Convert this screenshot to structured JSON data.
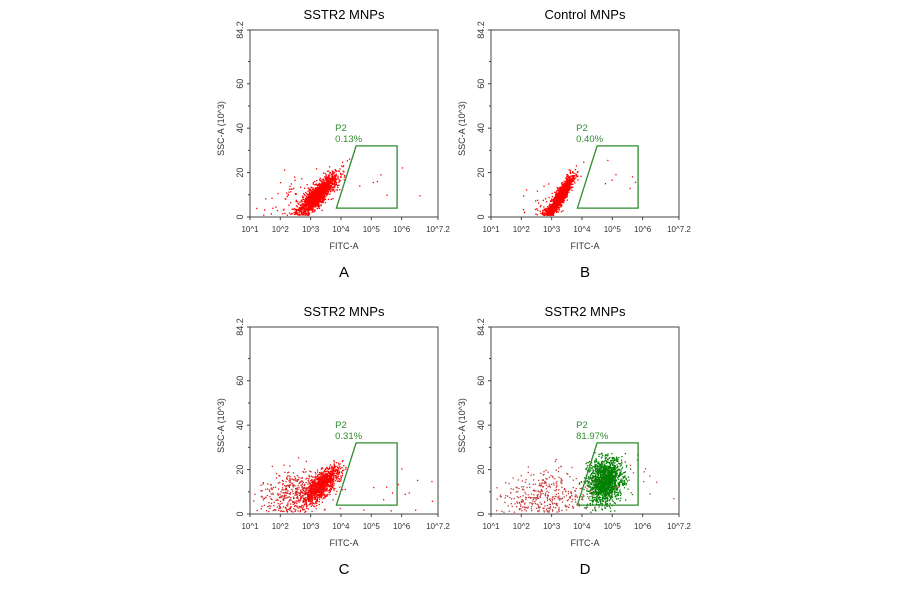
{
  "chart_data": [
    {
      "type": "scatter",
      "panel_label": "A",
      "title": "SSTR2 MNPs",
      "xlabel": "FITC-A",
      "ylabel": "SSC-A (10^3)",
      "x_scale": "log",
      "x_ticks": [
        "10^1",
        "10^2",
        "10^3",
        "10^4",
        "10^5",
        "10^6",
        "10^7.2"
      ],
      "xlim_log10": [
        1,
        7.2
      ],
      "y_ticks": [
        "0",
        "20",
        "40",
        "60",
        "84.2"
      ],
      "ylim": [
        0,
        84.2
      ],
      "gate": {
        "name": "P2",
        "percent": "0.13%",
        "color": "#2e8b2e",
        "vertices_log10fitc_ssc": [
          [
            3.85,
            4
          ],
          [
            4.5,
            32
          ],
          [
            5.85,
            32
          ],
          [
            5.85,
            4
          ]
        ]
      },
      "populations": [
        {
          "color": "#ff0000",
          "count": 1500,
          "mean_log10_fitc": 3.2,
          "sd_log10_fitc": 0.33,
          "mean_ssc": 10,
          "sd_ssc": 4.5,
          "slope": 12
        },
        {
          "color": "#ff0000",
          "count": 60,
          "mean_log10_fitc": 2.4,
          "sd_log10_fitc": 0.5,
          "mean_ssc": 8,
          "sd_ssc": 5,
          "slope": 2
        },
        {
          "color": "#ff0000",
          "count": 8,
          "mean_log10_fitc": 5.5,
          "sd_log10_fitc": 0.9,
          "mean_ssc": 14,
          "sd_ssc": 5,
          "slope": 0
        }
      ]
    },
    {
      "type": "scatter",
      "panel_label": "B",
      "title": "Control MNPs",
      "xlabel": "FITC-A",
      "ylabel": "SSC-A (10^3)",
      "x_scale": "log",
      "x_ticks": [
        "10^1",
        "10^2",
        "10^3",
        "10^4",
        "10^5",
        "10^6",
        "10^7.2"
      ],
      "xlim_log10": [
        1,
        7.2
      ],
      "y_ticks": [
        "0",
        "20",
        "40",
        "60",
        "84.2"
      ],
      "ylim": [
        0,
        84.2
      ],
      "gate": {
        "name": "P2",
        "percent": "0.40%",
        "color": "#2e8b2e",
        "vertices_log10fitc_ssc": [
          [
            3.85,
            4
          ],
          [
            4.5,
            32
          ],
          [
            5.85,
            32
          ],
          [
            5.85,
            4
          ]
        ]
      },
      "populations": [
        {
          "color": "#ff0000",
          "count": 1500,
          "mean_log10_fitc": 3.25,
          "sd_log10_fitc": 0.22,
          "mean_ssc": 9,
          "sd_ssc": 3.5,
          "slope": 20
        },
        {
          "color": "#ff0000",
          "count": 40,
          "mean_log10_fitc": 2.8,
          "sd_log10_fitc": 0.4,
          "mean_ssc": 6,
          "sd_ssc": 4,
          "slope": 2
        },
        {
          "color": "#ff0000",
          "count": 8,
          "mean_log10_fitc": 5.2,
          "sd_log10_fitc": 0.8,
          "mean_ssc": 14,
          "sd_ssc": 5,
          "slope": 0
        }
      ]
    },
    {
      "type": "scatter",
      "panel_label": "C",
      "title": "SSTR2 MNPs",
      "xlabel": "FITC-A",
      "ylabel": "SSC-A (10^3)",
      "x_scale": "log",
      "x_ticks": [
        "10^1",
        "10^2",
        "10^3",
        "10^4",
        "10^5",
        "10^6",
        "10^7.2"
      ],
      "xlim_log10": [
        1,
        7.2
      ],
      "y_ticks": [
        "0",
        "20",
        "40",
        "60",
        "84.2"
      ],
      "ylim": [
        0,
        84.2
      ],
      "gate": {
        "name": "P2",
        "percent": "0.31%",
        "color": "#2e8b2e",
        "vertices_log10fitc_ssc": [
          [
            3.85,
            4
          ],
          [
            4.5,
            32
          ],
          [
            5.85,
            32
          ],
          [
            5.85,
            4
          ]
        ]
      },
      "populations": [
        {
          "color": "#ff0000",
          "count": 1100,
          "mean_log10_fitc": 3.3,
          "sd_log10_fitc": 0.3,
          "mean_ssc": 13,
          "sd_ssc": 5,
          "slope": 10
        },
        {
          "color": "#dd2222",
          "count": 400,
          "mean_log10_fitc": 2.4,
          "sd_log10_fitc": 0.55,
          "mean_ssc": 10,
          "sd_ssc": 5.5,
          "slope": 3
        },
        {
          "color": "#ff0000",
          "count": 15,
          "mean_log10_fitc": 5.6,
          "sd_log10_fitc": 0.9,
          "mean_ssc": 12,
          "sd_ssc": 5,
          "slope": 0
        }
      ]
    },
    {
      "type": "scatter",
      "panel_label": "D",
      "title": "SSTR2 MNPs",
      "xlabel": "FITC-A",
      "ylabel": "SSC-A (10^3)",
      "x_scale": "log",
      "x_ticks": [
        "10^1",
        "10^2",
        "10^3",
        "10^4",
        "10^5",
        "10^6",
        "10^7.2"
      ],
      "xlim_log10": [
        1,
        7.2
      ],
      "y_ticks": [
        "0",
        "20",
        "40",
        "60",
        "84.2"
      ],
      "ylim": [
        0,
        84.2
      ],
      "gate": {
        "name": "P2",
        "percent": "81.97%",
        "color": "#2e8b2e",
        "vertices_log10fitc_ssc": [
          [
            3.85,
            4
          ],
          [
            4.5,
            32
          ],
          [
            5.85,
            32
          ],
          [
            5.85,
            4
          ]
        ]
      },
      "populations": [
        {
          "color": "#008000",
          "count": 1500,
          "mean_log10_fitc": 4.75,
          "sd_log10_fitc": 0.28,
          "mean_ssc": 15,
          "sd_ssc": 5,
          "slope": 3
        },
        {
          "color": "#c83c3c",
          "count": 380,
          "mean_log10_fitc": 2.8,
          "sd_log10_fitc": 0.7,
          "mean_ssc": 9,
          "sd_ssc": 5.5,
          "slope": 1
        },
        {
          "color": "#c83c3c",
          "count": 15,
          "mean_log10_fitc": 6.2,
          "sd_log10_fitc": 0.5,
          "mean_ssc": 15,
          "sd_ssc": 5,
          "slope": 0
        }
      ]
    }
  ]
}
